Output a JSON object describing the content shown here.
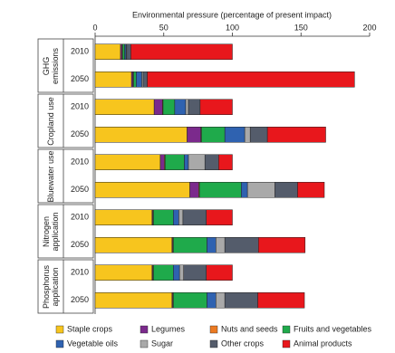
{
  "chart_data": {
    "type": "bar",
    "orientation": "horizontal",
    "stacked": true,
    "xlabel": "Environmental pressure (percentage of present impact)",
    "xlim": [
      0,
      200
    ],
    "xticks": [
      0,
      50,
      100,
      150,
      200
    ],
    "groups": [
      "GHG emissions",
      "Cropland use",
      "Bluewater use",
      "Nitrogen application",
      "Phosphorus application"
    ],
    "categories": [
      "2010",
      "2050",
      "2010",
      "2050",
      "2010",
      "2050",
      "2010",
      "2050",
      "2010",
      "2050"
    ],
    "series": [
      {
        "name": "Staple crops",
        "color": "#f7c51e",
        "values": [
          18.5,
          26.5,
          43,
          67,
          47.5,
          69,
          41.5,
          56,
          41.5,
          56
        ]
      },
      {
        "name": "Legumes",
        "color": "#7b2a8c",
        "values": [
          1,
          1,
          6,
          10,
          3,
          6.5,
          0.5,
          0.5,
          0.5,
          0.5
        ]
      },
      {
        "name": "Nuts and seeds",
        "color": "#ec7a22",
        "values": [
          0.5,
          0.5,
          0.5,
          0.5,
          0.5,
          0.5,
          0.5,
          0.5,
          0.5,
          0.5
        ]
      },
      {
        "name": "Fruits and vegetables",
        "color": "#1faa4b",
        "values": [
          1.5,
          2,
          8.5,
          17,
          14,
          30.5,
          14.5,
          24.5,
          14.5,
          24.5
        ]
      },
      {
        "name": "Vegetable oils",
        "color": "#2f62b0",
        "values": [
          1,
          4,
          8,
          14.5,
          3,
          4.5,
          4,
          6.5,
          4.5,
          6.5
        ]
      },
      {
        "name": "Sugar",
        "color": "#a9a9a9",
        "values": [
          0.5,
          1,
          2,
          4,
          12,
          20,
          3,
          6.5,
          3,
          6.5
        ]
      },
      {
        "name": "Other crops",
        "color": "#545c6b",
        "values": [
          3,
          3,
          8.5,
          12.5,
          10,
          16.5,
          17,
          24.5,
          16.5,
          24
        ]
      },
      {
        "name": "Animal products",
        "color": "#e8171c",
        "values": [
          74,
          151,
          23.5,
          42.5,
          10,
          19.5,
          19,
          34,
          19,
          34
        ]
      }
    ]
  }
}
